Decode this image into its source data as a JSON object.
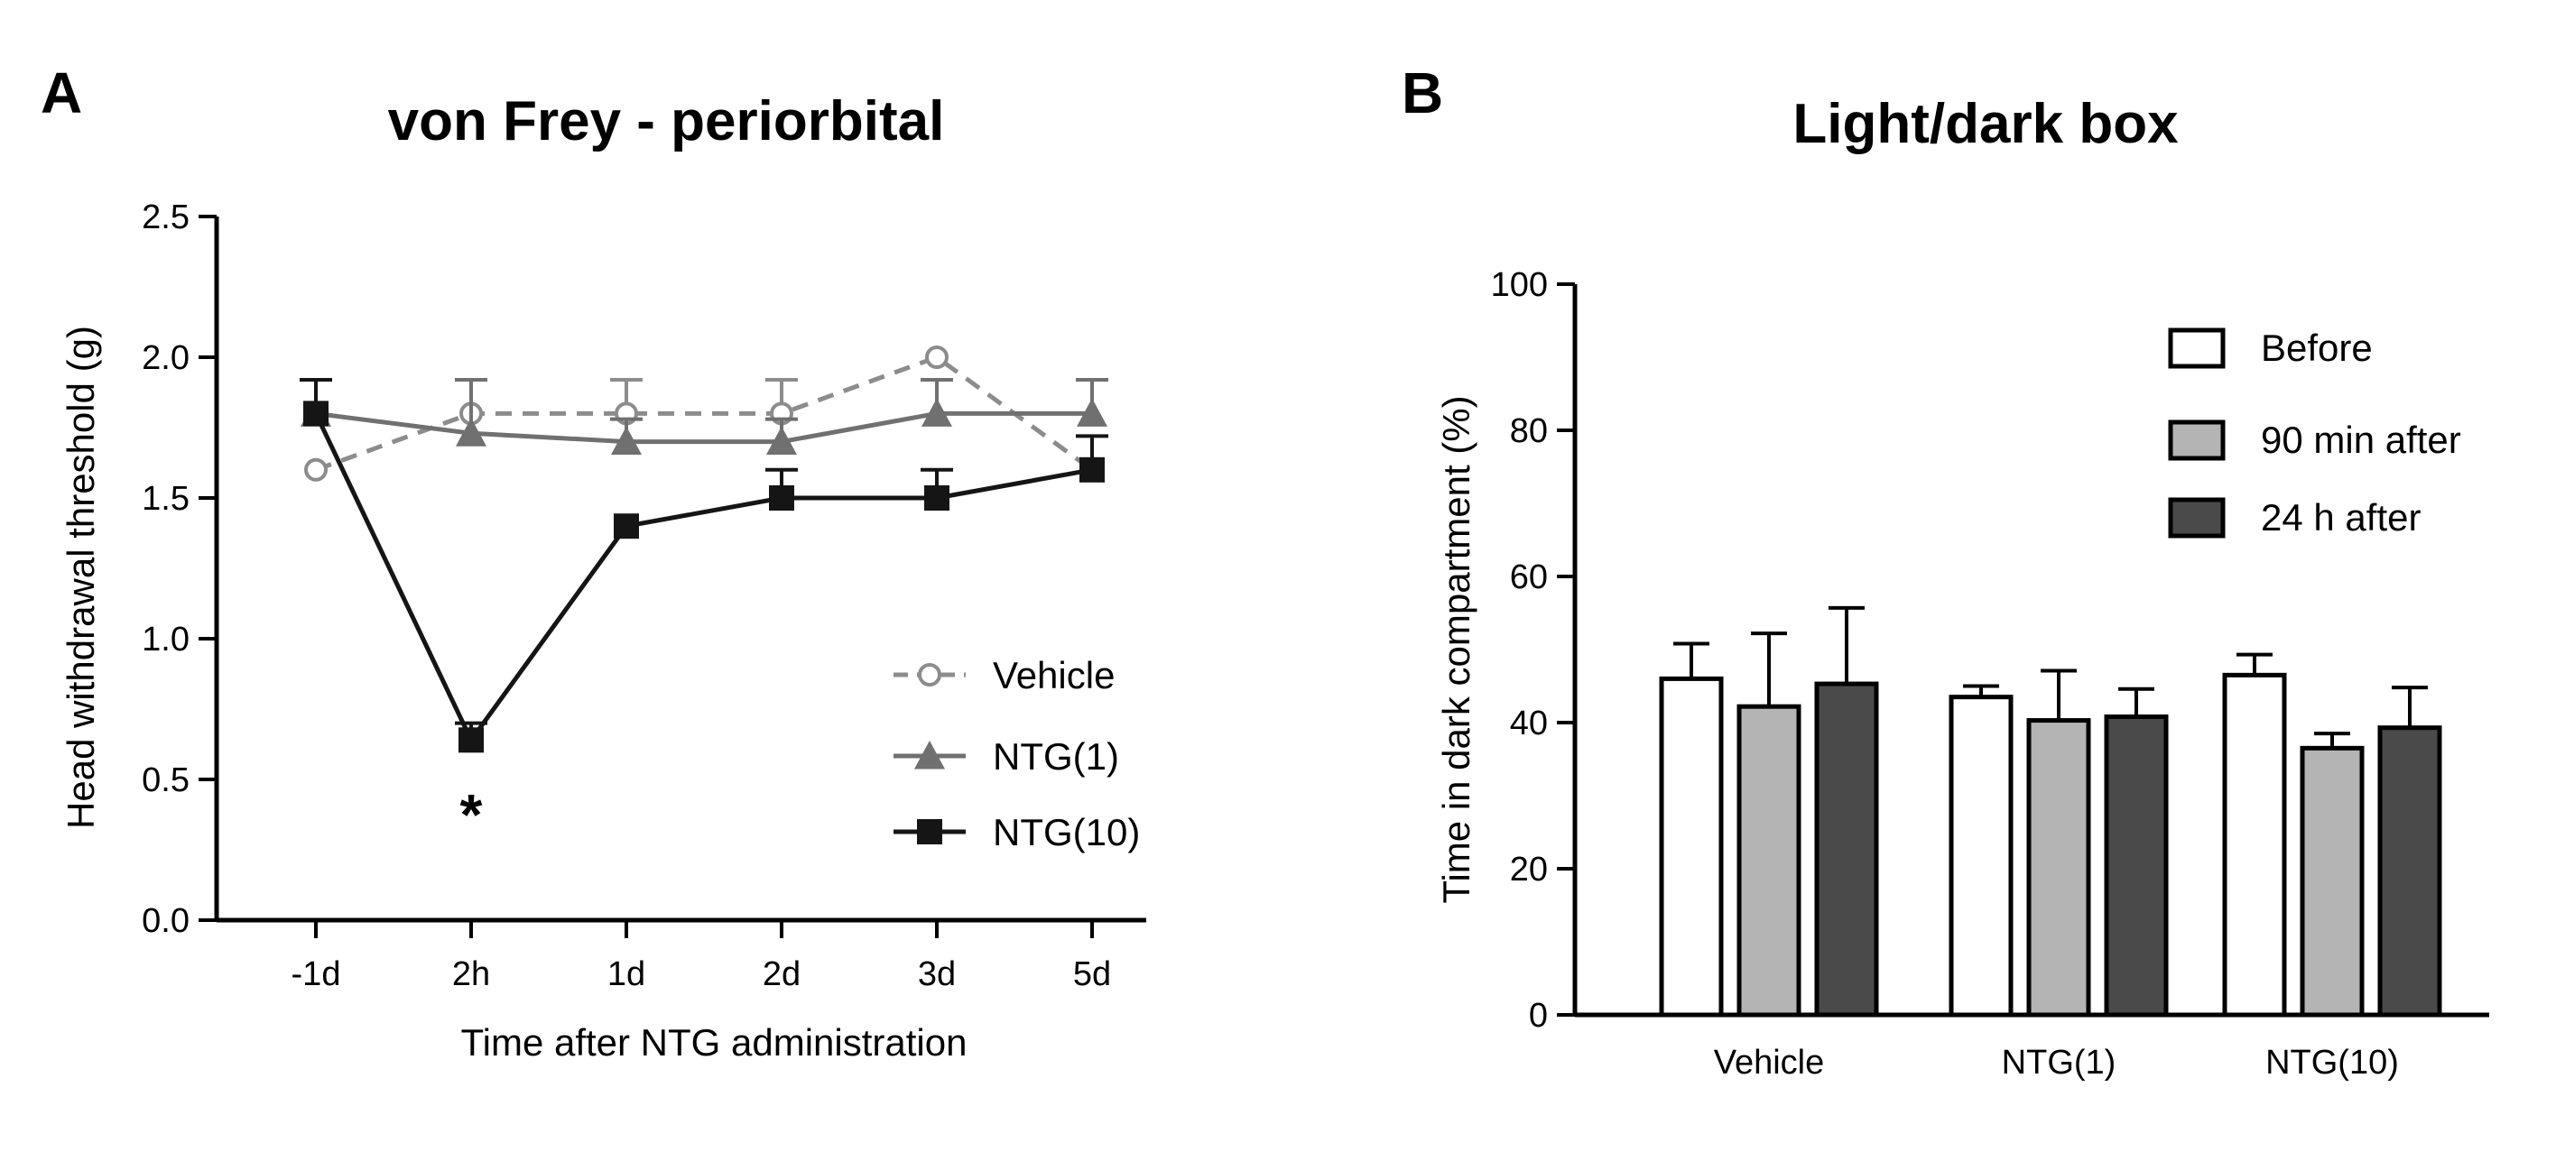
{
  "chart_data": [
    {
      "type": "line",
      "panel_label": "A",
      "title": "von Frey - periorbital",
      "xlabel": "Time after NTG administration",
      "ylabel": "Head withdrawal threshold (g)",
      "categories": [
        "-1d",
        "2h",
        "1d",
        "2d",
        "3d",
        "5d"
      ],
      "ylim": [
        0,
        2.5
      ],
      "yticks": [
        "0.0",
        "0.5",
        "1.0",
        "1.5",
        "2.0",
        "2.5"
      ],
      "legend_position": "lower-right",
      "series": [
        {
          "name": "Vehicle",
          "values": [
            1.6,
            1.8,
            1.8,
            1.8,
            2.0,
            1.6
          ],
          "errors": [
            0.0,
            0.12,
            0.12,
            0.12,
            0.0,
            0.0
          ],
          "marker": "open-circle",
          "line": "dashed",
          "color": "#8c8c8c"
        },
        {
          "name": "NTG(1)",
          "values": [
            1.8,
            1.73,
            1.7,
            1.7,
            1.8,
            1.8
          ],
          "errors": [
            0.12,
            0.19,
            0.08,
            0.08,
            0.12,
            0.12
          ],
          "marker": "triangle",
          "line": "solid",
          "color": "#707070"
        },
        {
          "name": "NTG(10)",
          "values": [
            1.8,
            0.64,
            1.4,
            1.5,
            1.5,
            1.6
          ],
          "errors": [
            0.12,
            0.06,
            0.0,
            0.1,
            0.1,
            0.12
          ],
          "marker": "square",
          "line": "solid",
          "color": "#151515"
        }
      ],
      "annotations": [
        {
          "text": "*",
          "category": "2h"
        }
      ]
    },
    {
      "type": "bar",
      "panel_label": "B",
      "title": "Light/dark box",
      "xlabel": "",
      "ylabel": "Time in dark compartment (%)",
      "categories": [
        "Vehicle",
        "NTG(1)",
        "NTG(10)"
      ],
      "ylim": [
        0,
        100
      ],
      "yticks": [
        "0",
        "20",
        "40",
        "60",
        "80",
        "100"
      ],
      "legend_position": "top-right",
      "series": [
        {
          "name": "Before",
          "values": [
            46,
            43.5,
            46.5
          ],
          "errors": [
            4.8,
            1.5,
            2.8
          ],
          "color": "#ffffff"
        },
        {
          "name": "90 min after",
          "values": [
            42.2,
            40.3,
            36.5
          ],
          "errors": [
            10,
            6.8,
            2
          ],
          "color": "#b4b4b4"
        },
        {
          "name": "24 h after",
          "values": [
            45.3,
            40.8,
            39.3
          ],
          "errors": [
            10.4,
            3.8,
            5.5
          ],
          "color": "#4a4a4a"
        }
      ]
    }
  ]
}
